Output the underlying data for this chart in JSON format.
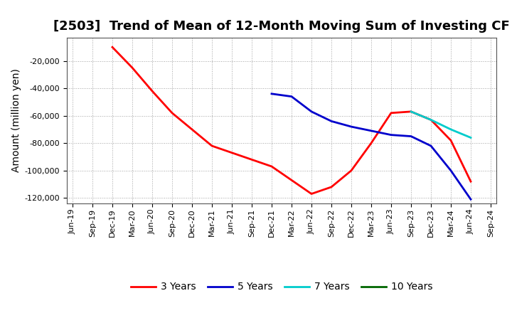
{
  "title": "[2503]  Trend of Mean of 12-Month Moving Sum of Investing CF",
  "ylabel": "Amount (million yen)",
  "background_color": "#ffffff",
  "grid_color": "#999999",
  "series": {
    "3 Years": {
      "color": "#ff0000",
      "x": [
        "Dec-19",
        "Mar-20",
        "Jun-20",
        "Sep-20",
        "Dec-20",
        "Mar-21",
        "Jun-21",
        "Sep-21",
        "Dec-21",
        "Mar-22",
        "Jun-22",
        "Sep-22",
        "Dec-22",
        "Mar-23",
        "Jun-23",
        "Sep-23",
        "Dec-23",
        "Mar-24",
        "Jun-24"
      ],
      "y": [
        -10000,
        -25000,
        -42000,
        -58000,
        -70000,
        -82000,
        -87000,
        -92000,
        -97000,
        -107000,
        -117000,
        -112000,
        -100000,
        -80000,
        -58000,
        -57000,
        -63000,
        -78000,
        -108000
      ]
    },
    "5 Years": {
      "color": "#0000cc",
      "x": [
        "Dec-21",
        "Mar-22",
        "Jun-22",
        "Sep-22",
        "Dec-22",
        "Mar-23",
        "Jun-23",
        "Sep-23",
        "Dec-23",
        "Mar-24",
        "Jun-24"
      ],
      "y": [
        -44000,
        -46000,
        -57000,
        -64000,
        -68000,
        -71000,
        -74000,
        -75000,
        -82000,
        -100000,
        -121000
      ]
    },
    "7 Years": {
      "color": "#00cccc",
      "x": [
        "Sep-23",
        "Dec-23",
        "Mar-24",
        "Jun-24"
      ],
      "y": [
        -57000,
        -63000,
        -70000,
        -76000
      ]
    },
    "10 Years": {
      "color": "#006600",
      "x": [],
      "y": []
    }
  },
  "xtick_labels": [
    "Jun-19",
    "Sep-19",
    "Dec-19",
    "Mar-20",
    "Jun-20",
    "Sep-20",
    "Dec-20",
    "Mar-21",
    "Jun-21",
    "Sep-21",
    "Dec-21",
    "Mar-22",
    "Jun-22",
    "Sep-22",
    "Dec-22",
    "Mar-23",
    "Jun-23",
    "Sep-23",
    "Dec-23",
    "Mar-24",
    "Jun-24",
    "Sep-24"
  ],
  "ylim_min": -124000,
  "ylim_max": -3000,
  "yticks": [
    -20000,
    -40000,
    -60000,
    -80000,
    -100000,
    -120000
  ],
  "title_fontsize": 13,
  "axis_label_fontsize": 10,
  "tick_fontsize": 8,
  "legend_fontsize": 10
}
